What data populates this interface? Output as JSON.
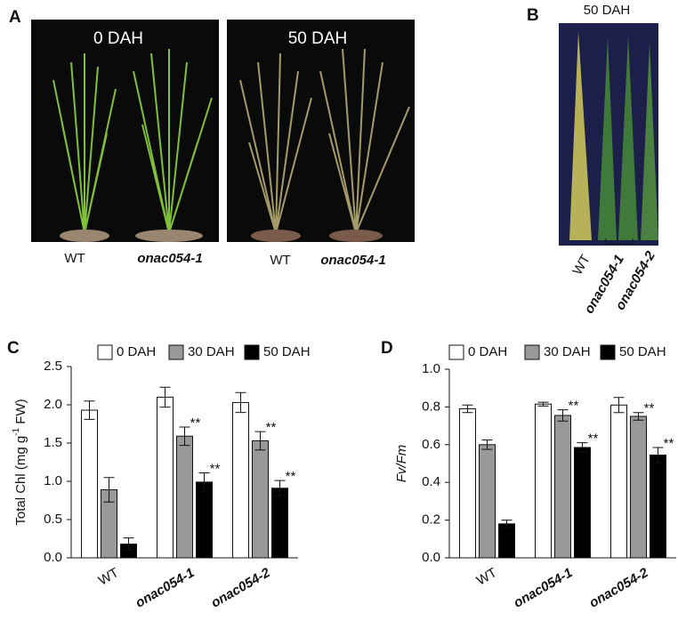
{
  "panels": {
    "A": {
      "label": "A",
      "photos": [
        {
          "title": "0 DAH",
          "genotypes": [
            "WT",
            "onac054-1"
          ]
        },
        {
          "title": "50 DAH",
          "genotypes": [
            "WT",
            "onac054-1"
          ]
        }
      ]
    },
    "B": {
      "label": "B",
      "title": "50 DAH",
      "genotypes": [
        "WT",
        "onac054-1",
        "onac054-2"
      ]
    }
  },
  "chart_data": [
    {
      "type": "bar",
      "panel_label": "C",
      "y_label": [
        "Total Chl (mg g",
        "-1",
        " FW)"
      ],
      "categories": [
        "WT",
        "onac054-1",
        "onac054-2"
      ],
      "ylim": [
        0,
        2.5
      ],
      "yticks": [
        {
          "value": 0,
          "label": "0.0"
        },
        {
          "value": 0.5,
          "label": "0.5"
        },
        {
          "value": 1,
          "label": "1.0"
        },
        {
          "value": 1.5,
          "label": "1.5"
        },
        {
          "value": 2,
          "label": "2.0"
        },
        {
          "value": 2.5,
          "label": "2.5"
        }
      ],
      "series": [
        {
          "name": "0 DAH",
          "color": "#ffffff",
          "values": [
            1.93,
            2.1,
            2.03
          ],
          "errors": [
            0.12,
            0.13,
            0.13
          ],
          "annotations": [
            null,
            null,
            null
          ]
        },
        {
          "name": "30 DAH",
          "color": "#999999",
          "values": [
            0.89,
            1.59,
            1.53
          ],
          "errors": [
            0.16,
            0.12,
            0.12
          ],
          "annotations": [
            null,
            "**",
            "**"
          ]
        },
        {
          "name": "50 DAH",
          "color": "#000000",
          "values": [
            0.18,
            0.99,
            0.91
          ],
          "errors": [
            0.08,
            0.12,
            0.1
          ],
          "annotations": [
            null,
            "**",
            "**"
          ]
        }
      ]
    },
    {
      "type": "bar",
      "panel_label": "D",
      "y_label": [
        "Fv/Fm"
      ],
      "categories": [
        "WT",
        "onac054-1",
        "onac054-2"
      ],
      "ylim": [
        0,
        1
      ],
      "yticks": [
        {
          "value": 0,
          "label": "0.0"
        },
        {
          "value": 0.2,
          "label": "0.2"
        },
        {
          "value": 0.4,
          "label": "0.4"
        },
        {
          "value": 0.6,
          "label": "0.6"
        },
        {
          "value": 0.8,
          "label": "0.8"
        },
        {
          "value": 1,
          "label": "1.0"
        }
      ],
      "series": [
        {
          "name": "0 DAH",
          "color": "#ffffff",
          "values": [
            0.79,
            0.815,
            0.81
          ],
          "errors": [
            0.02,
            0.01,
            0.04
          ],
          "annotations": [
            null,
            null,
            null
          ]
        },
        {
          "name": "30 DAH",
          "color": "#999999",
          "values": [
            0.6,
            0.755,
            0.75
          ],
          "errors": [
            0.025,
            0.03,
            0.02
          ],
          "annotations": [
            null,
            "**",
            "**"
          ]
        },
        {
          "name": "50 DAH",
          "color": "#000000",
          "values": [
            0.18,
            0.585,
            0.545
          ],
          "errors": [
            0.02,
            0.025,
            0.04
          ],
          "annotations": [
            null,
            "**",
            "**"
          ]
        }
      ]
    }
  ]
}
